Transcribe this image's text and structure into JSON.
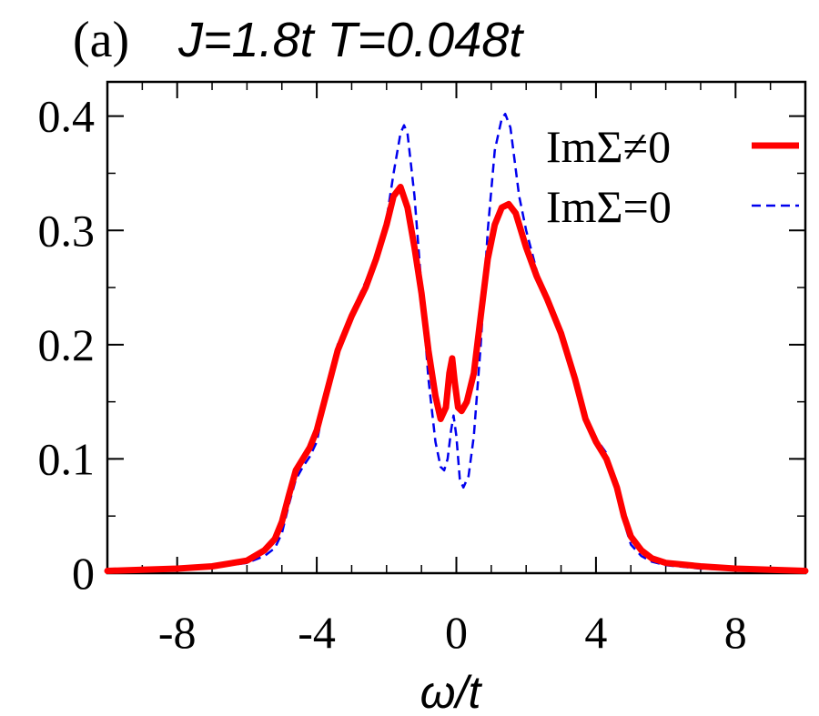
{
  "chart_data": {
    "type": "line",
    "title_prefix": "(a)",
    "title_params": "J=1.8t  T=0.048t",
    "xlabel": "ω/t",
    "ylabel": "",
    "xlim": [
      -10,
      10
    ],
    "ylim": [
      0,
      0.43
    ],
    "xticks": [
      -8,
      -4,
      0,
      4,
      8
    ],
    "yticks": [
      0,
      0.1,
      0.2,
      0.3,
      0.4
    ],
    "xtick_labels": [
      "-8",
      "-4",
      "0",
      "4",
      "8"
    ],
    "ytick_labels": [
      "0",
      "0.1",
      "0.2",
      "0.3",
      "0.4"
    ],
    "x_minor_step": 1,
    "y_minor_step": 0.05,
    "grid": false,
    "legend_position": "top-right",
    "series": [
      {
        "name": "ImΣ≠0",
        "color": "#ff0000",
        "style": "solid",
        "points": [
          [
            -10,
            0.002
          ],
          [
            -9,
            0.003
          ],
          [
            -8,
            0.004
          ],
          [
            -7,
            0.006
          ],
          [
            -6,
            0.011
          ],
          [
            -5.5,
            0.02
          ],
          [
            -5.2,
            0.03
          ],
          [
            -5.0,
            0.045
          ],
          [
            -4.8,
            0.068
          ],
          [
            -4.6,
            0.09
          ],
          [
            -4.4,
            0.1
          ],
          [
            -4.2,
            0.11
          ],
          [
            -4.0,
            0.125
          ],
          [
            -3.7,
            0.16
          ],
          [
            -3.4,
            0.195
          ],
          [
            -3.0,
            0.225
          ],
          [
            -2.6,
            0.25
          ],
          [
            -2.3,
            0.275
          ],
          [
            -2.0,
            0.305
          ],
          [
            -1.8,
            0.33
          ],
          [
            -1.6,
            0.338
          ],
          [
            -1.4,
            0.32
          ],
          [
            -1.2,
            0.285
          ],
          [
            -1.0,
            0.245
          ],
          [
            -0.8,
            0.195
          ],
          [
            -0.6,
            0.155
          ],
          [
            -0.45,
            0.135
          ],
          [
            -0.3,
            0.145
          ],
          [
            -0.2,
            0.175
          ],
          [
            -0.12,
            0.188
          ],
          [
            -0.05,
            0.168
          ],
          [
            0.05,
            0.145
          ],
          [
            0.15,
            0.142
          ],
          [
            0.3,
            0.15
          ],
          [
            0.5,
            0.175
          ],
          [
            0.7,
            0.225
          ],
          [
            0.9,
            0.275
          ],
          [
            1.1,
            0.305
          ],
          [
            1.3,
            0.32
          ],
          [
            1.5,
            0.323
          ],
          [
            1.7,
            0.315
          ],
          [
            2.0,
            0.285
          ],
          [
            2.3,
            0.26
          ],
          [
            2.6,
            0.24
          ],
          [
            3.0,
            0.21
          ],
          [
            3.4,
            0.17
          ],
          [
            3.7,
            0.135
          ],
          [
            4.0,
            0.115
          ],
          [
            4.3,
            0.1
          ],
          [
            4.6,
            0.075
          ],
          [
            4.8,
            0.05
          ],
          [
            5.0,
            0.032
          ],
          [
            5.3,
            0.02
          ],
          [
            5.6,
            0.013
          ],
          [
            6.0,
            0.009
          ],
          [
            7.0,
            0.006
          ],
          [
            8.0,
            0.004
          ],
          [
            9.0,
            0.003
          ],
          [
            10,
            0.002
          ]
        ]
      },
      {
        "name": "ImΣ=0",
        "color": "#0000ee",
        "style": "dashed",
        "points": [
          [
            -10,
            0.001
          ],
          [
            -9,
            0.002
          ],
          [
            -8,
            0.003
          ],
          [
            -7,
            0.005
          ],
          [
            -6,
            0.009
          ],
          [
            -5.5,
            0.015
          ],
          [
            -5.2,
            0.022
          ],
          [
            -5.0,
            0.035
          ],
          [
            -4.8,
            0.06
          ],
          [
            -4.6,
            0.082
          ],
          [
            -4.4,
            0.093
          ],
          [
            -4.2,
            0.102
          ],
          [
            -4.0,
            0.115
          ],
          [
            -3.7,
            0.16
          ],
          [
            -3.4,
            0.2
          ],
          [
            -3.0,
            0.228
          ],
          [
            -2.6,
            0.255
          ],
          [
            -2.3,
            0.278
          ],
          [
            -2.0,
            0.31
          ],
          [
            -1.8,
            0.35
          ],
          [
            -1.6,
            0.385
          ],
          [
            -1.5,
            0.392
          ],
          [
            -1.4,
            0.385
          ],
          [
            -1.2,
            0.33
          ],
          [
            -1.0,
            0.25
          ],
          [
            -0.8,
            0.17
          ],
          [
            -0.6,
            0.115
          ],
          [
            -0.45,
            0.093
          ],
          [
            -0.35,
            0.09
          ],
          [
            -0.25,
            0.1
          ],
          [
            -0.15,
            0.125
          ],
          [
            -0.08,
            0.138
          ],
          [
            0.0,
            0.12
          ],
          [
            0.1,
            0.082
          ],
          [
            0.2,
            0.075
          ],
          [
            0.35,
            0.085
          ],
          [
            0.5,
            0.12
          ],
          [
            0.7,
            0.2
          ],
          [
            0.9,
            0.3
          ],
          [
            1.1,
            0.37
          ],
          [
            1.3,
            0.398
          ],
          [
            1.4,
            0.402
          ],
          [
            1.55,
            0.39
          ],
          [
            1.8,
            0.33
          ],
          [
            2.0,
            0.3
          ],
          [
            2.3,
            0.265
          ],
          [
            2.6,
            0.24
          ],
          [
            3.0,
            0.205
          ],
          [
            3.4,
            0.165
          ],
          [
            3.7,
            0.135
          ],
          [
            4.0,
            0.118
          ],
          [
            4.3,
            0.105
          ],
          [
            4.6,
            0.078
          ],
          [
            4.8,
            0.045
          ],
          [
            5.0,
            0.025
          ],
          [
            5.3,
            0.015
          ],
          [
            5.6,
            0.01
          ],
          [
            6.0,
            0.007
          ],
          [
            7.0,
            0.004
          ],
          [
            8.0,
            0.003
          ],
          [
            9.0,
            0.002
          ],
          [
            10,
            0.001
          ]
        ]
      }
    ]
  }
}
